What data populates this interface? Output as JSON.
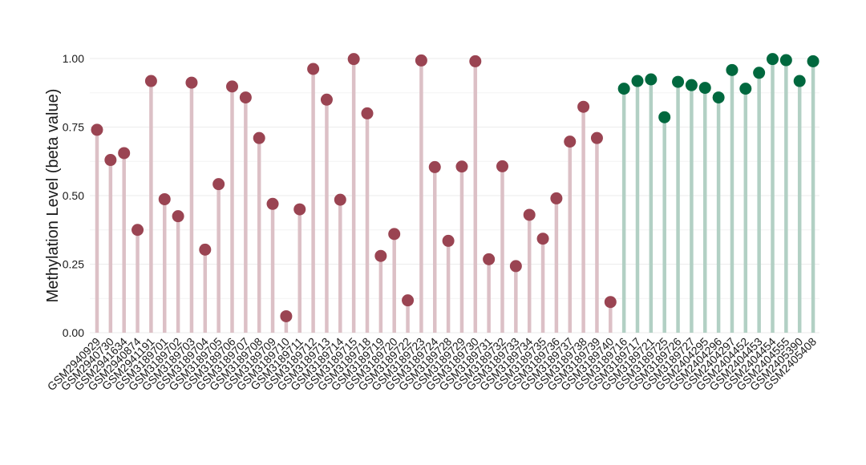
{
  "chart_data": {
    "type": "lollipop",
    "title": "",
    "xlabel": "",
    "ylabel": "Methylation Level (beta value)",
    "ylim": [
      0,
      1.0
    ],
    "yticks": [
      "0.00",
      "0.25",
      "0.50",
      "0.75",
      "1.00"
    ],
    "grid": true,
    "colors": {
      "group_a_point": "#9a4452",
      "group_a_stem": "#dcc0c6",
      "group_b_point": "#00683e",
      "group_b_stem": "#b2d0c4"
    },
    "samples": [
      {
        "label": "GSM2940929",
        "value": 0.74,
        "group": "a"
      },
      {
        "label": "GSM2940730",
        "value": 0.63,
        "group": "a"
      },
      {
        "label": "GSM2941634",
        "value": 0.655,
        "group": "a"
      },
      {
        "label": "GSM2940874",
        "value": 0.375,
        "group": "a"
      },
      {
        "label": "GSM2941191",
        "value": 0.918,
        "group": "a"
      },
      {
        "label": "GSM3189701",
        "value": 0.487,
        "group": "a"
      },
      {
        "label": "GSM3189702",
        "value": 0.425,
        "group": "a"
      },
      {
        "label": "GSM3189703",
        "value": 0.912,
        "group": "a"
      },
      {
        "label": "GSM3189704",
        "value": 0.303,
        "group": "a"
      },
      {
        "label": "GSM3189705",
        "value": 0.542,
        "group": "a"
      },
      {
        "label": "GSM3189706",
        "value": 0.898,
        "group": "a"
      },
      {
        "label": "GSM3189707",
        "value": 0.858,
        "group": "a"
      },
      {
        "label": "GSM3189708",
        "value": 0.71,
        "group": "a"
      },
      {
        "label": "GSM3189709",
        "value": 0.47,
        "group": "a"
      },
      {
        "label": "GSM3189710",
        "value": 0.06,
        "group": "a"
      },
      {
        "label": "GSM3189711",
        "value": 0.45,
        "group": "a"
      },
      {
        "label": "GSM3189712",
        "value": 0.962,
        "group": "a"
      },
      {
        "label": "GSM3189713",
        "value": 0.85,
        "group": "a"
      },
      {
        "label": "GSM3189714",
        "value": 0.485,
        "group": "a"
      },
      {
        "label": "GSM3189715",
        "value": 0.998,
        "group": "a"
      },
      {
        "label": "GSM3189718",
        "value": 0.8,
        "group": "a"
      },
      {
        "label": "GSM3189719",
        "value": 0.28,
        "group": "a"
      },
      {
        "label": "GSM3189720",
        "value": 0.36,
        "group": "a"
      },
      {
        "label": "GSM3189722",
        "value": 0.118,
        "group": "a"
      },
      {
        "label": "GSM3189723",
        "value": 0.993,
        "group": "a"
      },
      {
        "label": "GSM3189724",
        "value": 0.604,
        "group": "a"
      },
      {
        "label": "GSM3189728",
        "value": 0.335,
        "group": "a"
      },
      {
        "label": "GSM3189729",
        "value": 0.606,
        "group": "a"
      },
      {
        "label": "GSM3189730",
        "value": 0.99,
        "group": "a"
      },
      {
        "label": "GSM3189731",
        "value": 0.268,
        "group": "a"
      },
      {
        "label": "GSM3189732",
        "value": 0.607,
        "group": "a"
      },
      {
        "label": "GSM3189733",
        "value": 0.243,
        "group": "a"
      },
      {
        "label": "GSM3189734",
        "value": 0.43,
        "group": "a"
      },
      {
        "label": "GSM3189735",
        "value": 0.343,
        "group": "a"
      },
      {
        "label": "GSM3189736",
        "value": 0.49,
        "group": "a"
      },
      {
        "label": "GSM3189737",
        "value": 0.697,
        "group": "a"
      },
      {
        "label": "GSM3189738",
        "value": 0.824,
        "group": "a"
      },
      {
        "label": "GSM3189739",
        "value": 0.71,
        "group": "a"
      },
      {
        "label": "GSM3189740",
        "value": 0.112,
        "group": "a"
      },
      {
        "label": "GSM3189716",
        "value": 0.89,
        "group": "b"
      },
      {
        "label": "GSM3189717",
        "value": 0.918,
        "group": "b"
      },
      {
        "label": "GSM3189721",
        "value": 0.924,
        "group": "b"
      },
      {
        "label": "GSM3189725",
        "value": 0.786,
        "group": "b"
      },
      {
        "label": "GSM3189726",
        "value": 0.915,
        "group": "b"
      },
      {
        "label": "GSM3189727",
        "value": 0.903,
        "group": "b"
      },
      {
        "label": "GSM2404295",
        "value": 0.893,
        "group": "b"
      },
      {
        "label": "GSM2404296",
        "value": 0.858,
        "group": "b"
      },
      {
        "label": "GSM2404297",
        "value": 0.958,
        "group": "b"
      },
      {
        "label": "GSM2404452",
        "value": 0.89,
        "group": "b"
      },
      {
        "label": "GSM2404453",
        "value": 0.948,
        "group": "b"
      },
      {
        "label": "GSM2404454",
        "value": 0.998,
        "group": "b"
      },
      {
        "label": "GSM2404555",
        "value": 0.994,
        "group": "b"
      },
      {
        "label": "GSM2405390",
        "value": 0.918,
        "group": "b"
      },
      {
        "label": "GSM2405408",
        "value": 0.99,
        "group": "b"
      }
    ]
  }
}
